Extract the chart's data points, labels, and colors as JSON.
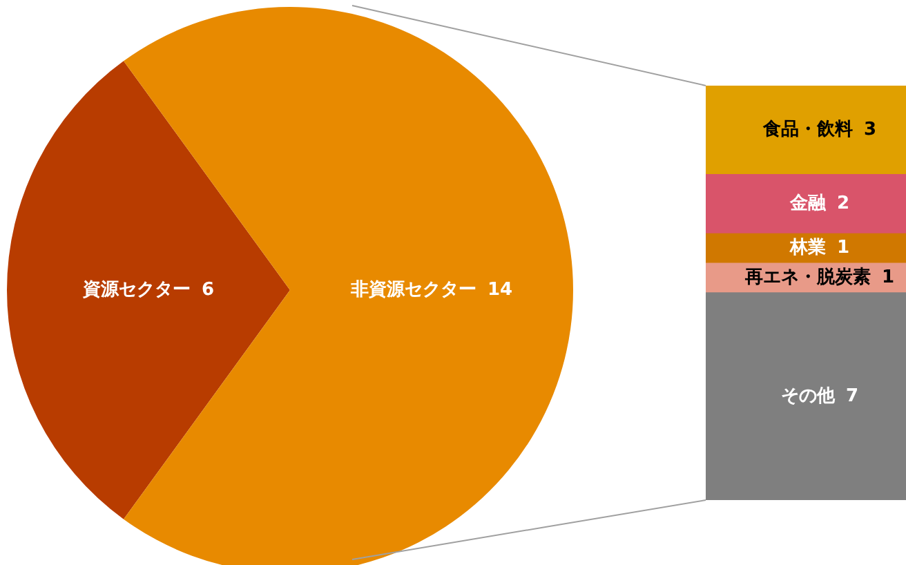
{
  "chart_data": [
    {
      "type": "pie",
      "categories": [
        "資源セクター",
        "非資源セクター"
      ],
      "values": [
        6,
        14
      ],
      "colors": [
        "#b83c00",
        "#e88a00"
      ],
      "data_labels": true
    },
    {
      "type": "bar",
      "categories": [
        null
      ],
      "stacked": true,
      "tick_labels": false,
      "data_labels": true,
      "series": [
        {
          "name": "その他",
          "color": "#7f7f7f",
          "values": [
            7
          ]
        },
        {
          "name": "再エネ・脱炭素",
          "color": "#e89a88",
          "values": [
            1
          ]
        },
        {
          "name": "林業",
          "color": "#d07800",
          "values": [
            1
          ]
        },
        {
          "name": "金融",
          "color": "#d9546a",
          "values": [
            2
          ]
        },
        {
          "name": "食品・飲料",
          "color": "#e0a000",
          "values": [
            3
          ]
        }
      ]
    }
  ]
}
